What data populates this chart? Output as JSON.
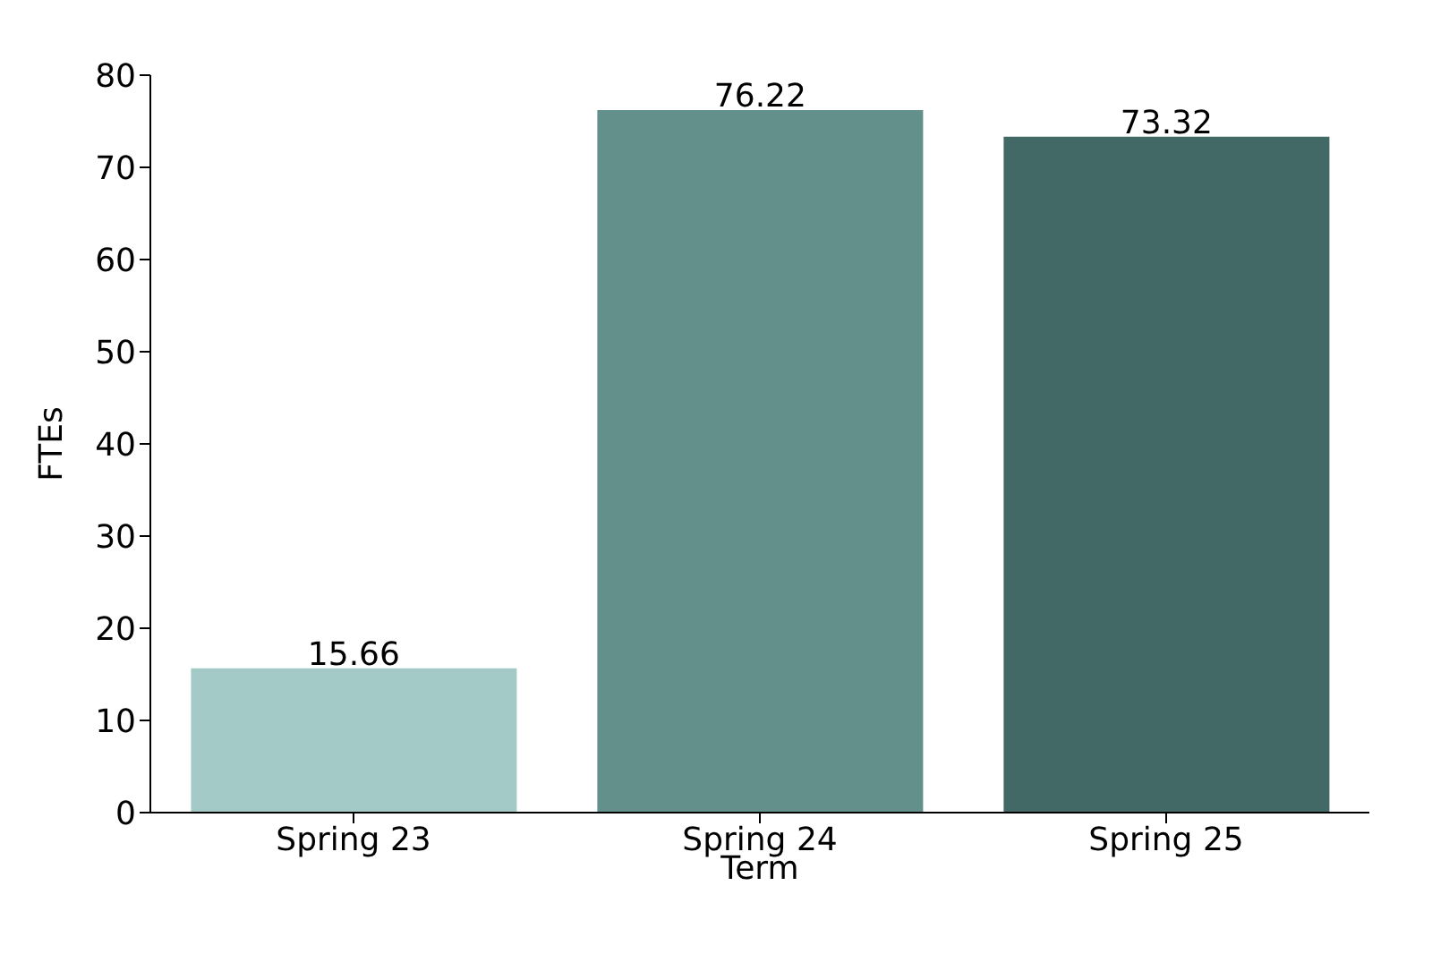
{
  "chart_data": {
    "type": "bar",
    "xlabel": "Term",
    "ylabel": "FTEs",
    "categories": [
      "Spring 23",
      "Spring 24",
      "Spring 25"
    ],
    "values": [
      15.66,
      76.22,
      73.32
    ],
    "colors": [
      "#a3cac7",
      "#64908c",
      "#426965"
    ],
    "ylim": [
      0,
      80
    ],
    "yticks": [
      0,
      10,
      20,
      30,
      40,
      50,
      60,
      70,
      80
    ],
    "data_labels": true
  }
}
